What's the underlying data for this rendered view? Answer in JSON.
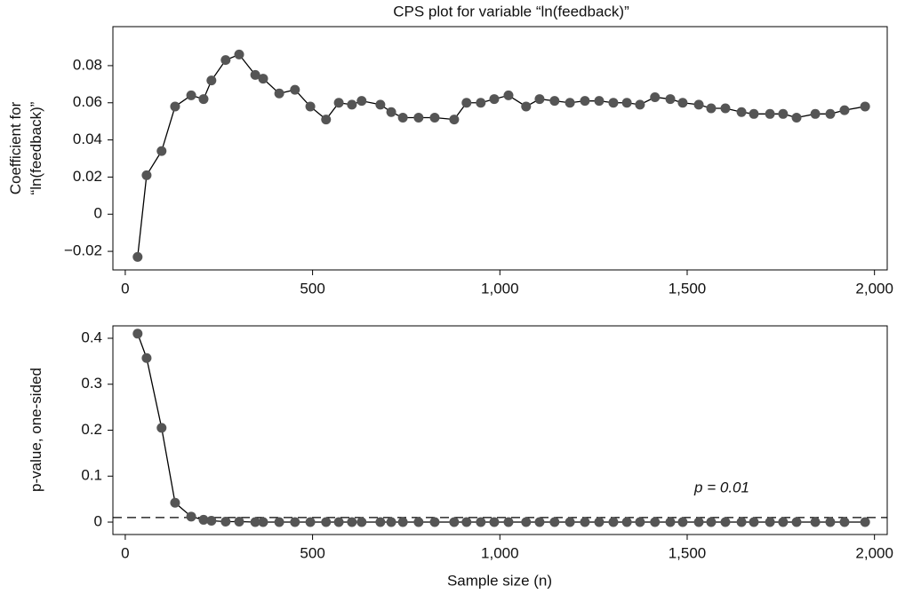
{
  "chart_data": [
    {
      "type": "line",
      "title": "CPS plot for variable “ln(feedback)”",
      "ylabel": [
        "Coefficient for",
        "“ln(feedback)”"
      ],
      "x": [
        33,
        57,
        97,
        133,
        176,
        209,
        230,
        268,
        304,
        347,
        368,
        411,
        453,
        494,
        536,
        570,
        605,
        631,
        681,
        710,
        741,
        783,
        826,
        878,
        911,
        949,
        985,
        1023,
        1070,
        1106,
        1146,
        1187,
        1227,
        1265,
        1303,
        1339,
        1374,
        1414,
        1455,
        1488,
        1531,
        1564,
        1602,
        1645,
        1678,
        1721,
        1756,
        1792,
        1842,
        1882,
        1920,
        1975
      ],
      "series": [
        {
          "name": "Coefficient",
          "color": "#555555",
          "values": [
            -0.023,
            0.021,
            0.034,
            0.058,
            0.064,
            0.062,
            0.072,
            0.083,
            0.086,
            0.075,
            0.073,
            0.065,
            0.067,
            0.058,
            0.051,
            0.06,
            0.059,
            0.061,
            0.059,
            0.055,
            0.052,
            0.052,
            0.052,
            0.051,
            0.06,
            0.06,
            0.062,
            0.064,
            0.058,
            0.062,
            0.061,
            0.06,
            0.061,
            0.061,
            0.06,
            0.06,
            0.059,
            0.063,
            0.062,
            0.06,
            0.059,
            0.057,
            0.057,
            0.055,
            0.054,
            0.054,
            0.054,
            0.052,
            0.054,
            0.054,
            0.056,
            0.058
          ]
        }
      ],
      "xlim": [
        -33,
        2034
      ],
      "ylim": [
        -0.03,
        0.101
      ],
      "xticks": [
        0,
        500,
        {
          "value": 1000,
          "label": "1,000"
        },
        {
          "value": 1500,
          "label": "1,500"
        },
        {
          "value": 2000,
          "label": "2,000"
        }
      ],
      "yticks": [
        {
          "value": -0.02,
          "label": "−0.02"
        },
        0,
        0.02,
        0.04,
        0.06,
        0.08
      ]
    },
    {
      "type": "line",
      "ylabel": [
        "p-value, one-sided"
      ],
      "xlabel": "Sample size (n)",
      "x": [
        33,
        57,
        97,
        133,
        176,
        209,
        230,
        268,
        304,
        347,
        368,
        411,
        453,
        494,
        536,
        570,
        605,
        631,
        681,
        710,
        741,
        783,
        826,
        878,
        911,
        949,
        985,
        1023,
        1070,
        1106,
        1146,
        1187,
        1227,
        1265,
        1303,
        1339,
        1374,
        1414,
        1455,
        1488,
        1531,
        1564,
        1602,
        1645,
        1678,
        1721,
        1756,
        1792,
        1842,
        1882,
        1920,
        1975
      ],
      "series": [
        {
          "name": "p-value",
          "color": "#555555",
          "values": [
            0.41,
            0.357,
            0.205,
            0.042,
            0.012,
            0.005,
            0.003,
            0.001,
            0.001,
            0,
            0,
            0,
            0,
            0,
            0,
            0,
            0,
            0,
            0,
            0,
            0,
            0,
            0,
            0,
            0,
            0,
            0,
            0,
            0,
            0,
            0,
            0,
            0,
            0,
            0,
            0,
            0,
            0,
            0,
            0,
            0,
            0,
            0,
            0,
            0,
            0,
            0,
            0,
            0,
            0,
            0,
            0
          ]
        }
      ],
      "hline": {
        "value": 0.01,
        "label": "p = 0.01"
      },
      "xlim": [
        -33,
        2034
      ],
      "ylim": [
        -0.027,
        0.427
      ],
      "xticks": [
        0,
        500,
        {
          "value": 1000,
          "label": "1,000"
        },
        {
          "value": 1500,
          "label": "1,500"
        },
        {
          "value": 2000,
          "label": "2,000"
        }
      ],
      "yticks": [
        0,
        0.1,
        0.2,
        0.3,
        0.4
      ]
    }
  ]
}
